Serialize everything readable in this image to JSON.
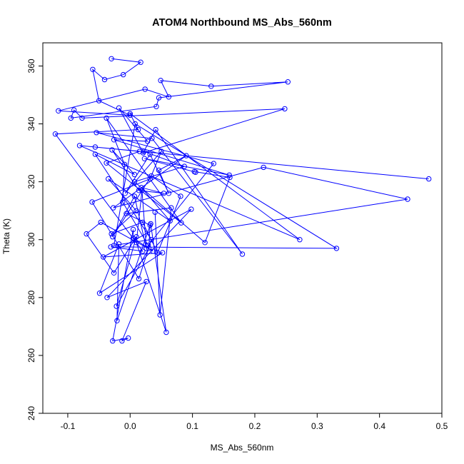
{
  "chart_data": {
    "type": "scatter",
    "title": "ATOM4 Northbound MS_Abs_560nm",
    "xlabel": "MS_Abs_560nm",
    "ylabel": "Theta (K)",
    "xlim": [
      -0.14,
      0.5
    ],
    "ylim": [
      240,
      368
    ],
    "x_ticks": [
      -0.1,
      0.0,
      0.1,
      0.2,
      0.3,
      0.4,
      0.5
    ],
    "x_tick_labels": [
      "-0.1",
      "0.0",
      "0.1",
      "0.2",
      "0.3",
      "0.4",
      "0.5"
    ],
    "y_ticks": [
      240,
      260,
      280,
      300,
      320,
      340,
      360
    ],
    "y_tick_labels": [
      "240",
      "260",
      "280",
      "300",
      "320",
      "340",
      "360"
    ],
    "grid": false,
    "series": [
      {
        "color": "#0000ff",
        "connected": true,
        "x": [
          -0.03,
          0.017,
          -0.011,
          -0.041,
          -0.06,
          -0.05,
          0.0,
          -0.115,
          0.024,
          0.062,
          0.049,
          0.13,
          0.253,
          0.046,
          0.042,
          -0.095,
          -0.09,
          -0.077,
          0.248,
          0.021,
          -0.018,
          0.028,
          -0.026,
          0.159,
          0.023,
          0.105,
          0.103,
          0.16,
          0.12,
          0.007,
          0.087,
          0.022,
          0.041,
          0.18,
          0.035,
          -0.054,
          0.134,
          0.029,
          -0.012,
          -0.009,
          -0.038,
          0.082,
          -0.038,
          0.015,
          -0.056,
          0.479,
          -0.081,
          0.272,
          0.0,
          0.013,
          -0.12,
          0.02,
          -0.031,
          0.331,
          0.008,
          -0.026,
          0.445,
          0.214,
          -0.027,
          0.09,
          0.046,
          0.062,
          0.032,
          -0.008,
          0.05,
          0.032,
          -0.061,
          0.014,
          0.034,
          -0.056,
          0.007,
          -0.029,
          0.014,
          0.054,
          0.018,
          0.064,
          -0.035,
          0.01,
          -0.03,
          0.02,
          0.044,
          0.081,
          0.034,
          -0.028,
          0.007,
          0.026,
          0.019,
          0.01,
          0.058,
          0.033,
          -0.021,
          -0.018,
          -0.049,
          0.052,
          -0.043,
          0.098,
          -0.037,
          0.026,
          -0.013,
          -0.003,
          -0.028,
          0.005,
          0.005,
          0.037,
          -0.047,
          -0.07,
          -0.026,
          0.01,
          -0.022,
          0.03,
          0.032,
          -0.006,
          0.066,
          0.048,
          0.04
        ],
        "y": [
          362.5,
          361.3,
          357.0,
          355.3,
          358.8,
          348.0,
          343.0,
          344.5,
          352.0,
          349.3,
          355.0,
          353.0,
          354.5,
          349.0,
          346.0,
          342.0,
          344.8,
          342.0,
          345.2,
          330.0,
          345.5,
          334.0,
          334.5,
          322.3,
          328.0,
          323.3,
          323.5,
          321.5,
          299.0,
          320.0,
          325.3,
          330.5,
          338.0,
          295.0,
          335.0,
          337.0,
          326.3,
          298.0,
          313.0,
          326.0,
          342.0,
          305.8,
          326.5,
          330.5,
          332.0,
          321.0,
          332.5,
          300.0,
          343.5,
          338.0,
          336.5,
          296.0,
          297.5,
          297.0,
          340.0,
          298.0,
          314.0,
          325.0,
          311.0,
          329.0,
          324.0,
          316.0,
          329.5,
          316.0,
          330.5,
          321.0,
          313.0,
          286.5,
          300.0,
          329.5,
          322.5,
          331.0,
          317.0,
          316.0,
          318.0,
          306.5,
          321.0,
          310.0,
          302.0,
          306.0,
          295.5,
          315.0,
          322.0,
          301.0,
          315.0,
          297.0,
          317.0,
          299.0,
          268.0,
          305.5,
          272.0,
          298.5,
          281.5,
          295.5,
          294.0,
          310.5,
          280.0,
          285.5,
          265.0,
          266.0,
          265.0,
          303.5,
          300.5,
          296.0,
          306.0,
          302.0,
          288.5,
          301.0,
          277.0,
          297.0,
          305.0,
          309.0,
          311.0,
          274.0,
          309.5
        ]
      }
    ]
  }
}
